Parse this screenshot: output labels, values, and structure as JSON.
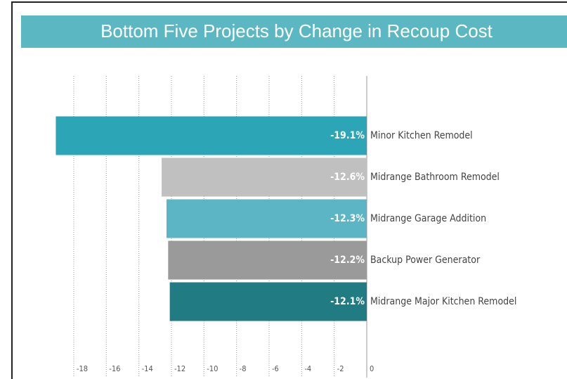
{
  "chart_data": {
    "type": "hbar",
    "title": "Bottom Five Projects by Change in Recoup Cost",
    "categories": [
      "Minor Kitchen Remodel",
      "Midrange Bathroom Remodel",
      "Midrange Garage Addition",
      "Backup Power Generator",
      "Midrange Major Kitchen Remodel"
    ],
    "values": [
      -19.1,
      -12.6,
      -12.3,
      -12.2,
      -12.1
    ],
    "value_labels": [
      "-19.1%",
      "-12.6%",
      "-12.3%",
      "-12.2%",
      "-12.1%"
    ],
    "colors": [
      "#2ca6b6",
      "#c0c0c0",
      "#5bb5c5",
      "#9a9a9a",
      "#217b82"
    ],
    "xlim": [
      -20,
      0
    ],
    "xticks": [
      -18,
      -16,
      -14,
      -12,
      -10,
      -8,
      -6,
      -4,
      -2,
      0
    ],
    "grid": true
  }
}
